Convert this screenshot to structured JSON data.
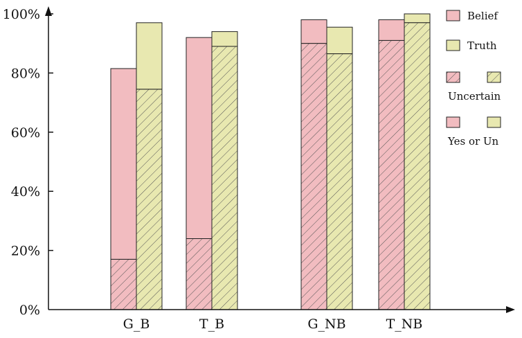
{
  "chart_data": {
    "type": "bar",
    "stacked": true,
    "categories": [
      "G_B",
      "T_B",
      "G_NB",
      "T_NB"
    ],
    "y_unit": "%",
    "ylim": [
      0,
      100
    ],
    "yticks": [
      0,
      20,
      40,
      60,
      80,
      100
    ],
    "ytick_labels": [
      "0%",
      "20%",
      "40%",
      "60%",
      "80%",
      "100%"
    ],
    "grid": false,
    "legend_position": "top-right",
    "groups": [
      {
        "name": "Belief",
        "color": "#f2bcc0",
        "uncertain": [
          17,
          24,
          90,
          91
        ],
        "total": [
          81.5,
          92,
          98,
          98
        ]
      },
      {
        "name": "Truth",
        "color": "#e8e8b0",
        "uncertain": [
          74.5,
          89,
          86.5,
          97
        ],
        "total": [
          97,
          94,
          95.5,
          100
        ]
      }
    ],
    "legend": {
      "belief": "Belief",
      "truth": "Truth",
      "uncertain": "Uncertain",
      "yes_or_un": "Yes or Un"
    }
  }
}
